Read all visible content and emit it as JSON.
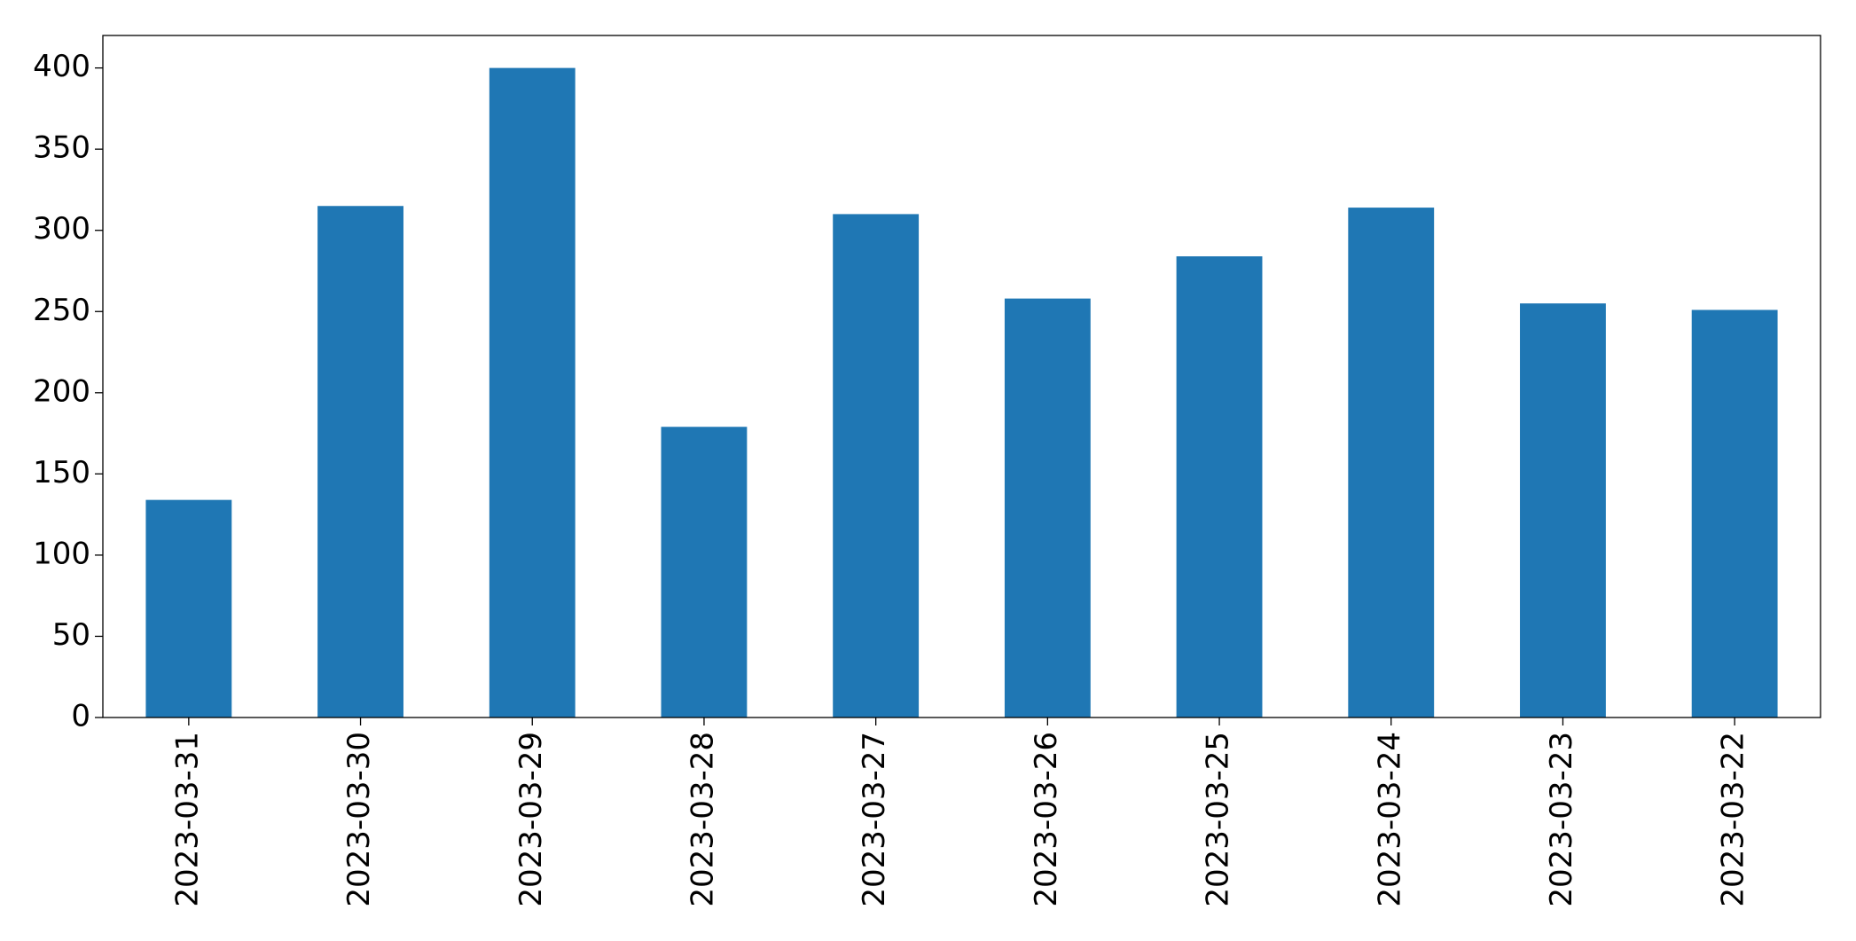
{
  "chart_data": {
    "type": "bar",
    "categories": [
      "2023-03-31",
      "2023-03-30",
      "2023-03-29",
      "2023-03-28",
      "2023-03-27",
      "2023-03-26",
      "2023-03-25",
      "2023-03-24",
      "2023-03-23",
      "2023-03-22"
    ],
    "values": [
      134,
      315,
      400,
      179,
      310,
      258,
      284,
      314,
      255,
      251
    ],
    "color": "#1f77b4",
    "ylim": [
      0,
      420
    ],
    "yticks": [
      0,
      50,
      100,
      150,
      200,
      250,
      300,
      350,
      400
    ],
    "grid": false
  }
}
